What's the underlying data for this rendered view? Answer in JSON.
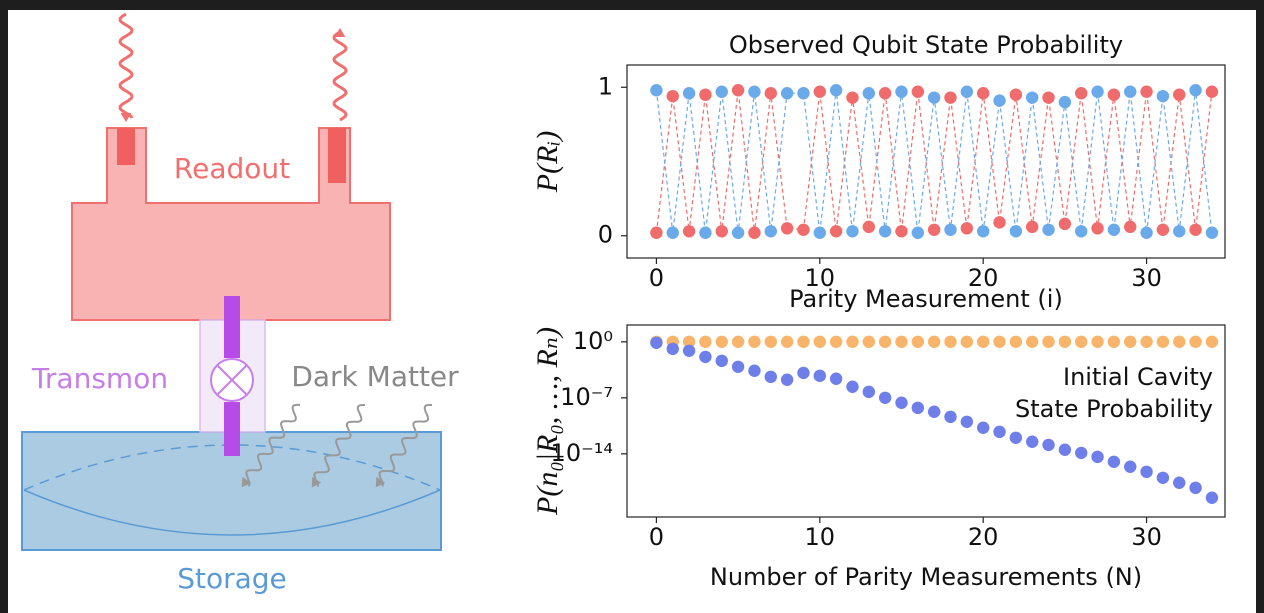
{
  "diagram": {
    "readout_label": "Readout",
    "transmon_label": "Transmon",
    "dark_matter_label": "Dark Matter",
    "storage_label": "Storage"
  },
  "chart_data": [
    {
      "type": "line",
      "title": "Observed Qubit State Probability",
      "y_label": "P(Rᵢ)",
      "x_label": "Parity Measurement (i)",
      "x": [
        0,
        1,
        2,
        3,
        4,
        5,
        6,
        7,
        8,
        9,
        10,
        11,
        12,
        13,
        14,
        15,
        16,
        17,
        18,
        19,
        20,
        21,
        22,
        23,
        24,
        25,
        26,
        27,
        28,
        29,
        30,
        31,
        32,
        33,
        34
      ],
      "series": [
        {
          "color": "#f06b6b",
          "values": [
            0.02,
            0.94,
            0.03,
            0.95,
            0.03,
            0.98,
            0.02,
            0.96,
            0.05,
            0.04,
            0.97,
            0.03,
            0.93,
            0.06,
            0.96,
            0.03,
            0.97,
            0.04,
            0.93,
            0.05,
            0.96,
            0.09,
            0.95,
            0.06,
            0.93,
            0.08,
            0.96,
            0.05,
            0.95,
            0.06,
            0.97,
            0.04,
            0.95,
            0.04,
            0.97
          ]
        },
        {
          "color": "#6aaaea",
          "values": [
            0.98,
            0.02,
            0.96,
            0.02,
            0.97,
            0.02,
            0.97,
            0.03,
            0.96,
            0.96,
            0.02,
            0.98,
            0.03,
            0.96,
            0.03,
            0.97,
            0.02,
            0.93,
            0.04,
            0.97,
            0.03,
            0.91,
            0.03,
            0.93,
            0.04,
            0.9,
            0.03,
            0.97,
            0.04,
            0.97,
            0.02,
            0.94,
            0.03,
            0.98,
            0.02
          ]
        }
      ],
      "xlim": [
        -1.8,
        34.8
      ],
      "ylim": [
        -0.15,
        1.15
      ],
      "xticks": [
        0,
        10,
        20,
        30
      ],
      "yticks": [
        0,
        1
      ],
      "dashed": true
    },
    {
      "type": "scatter",
      "y_label": "P(n₀|R₀, …, Rₙ)",
      "x_label": "Number of Parity Measurements (N)",
      "annotation": [
        "Initial Cavity",
        "State Probability"
      ],
      "x": [
        0,
        1,
        2,
        3,
        4,
        5,
        6,
        7,
        8,
        9,
        10,
        11,
        12,
        13,
        14,
        15,
        16,
        17,
        18,
        19,
        20,
        21,
        22,
        23,
        24,
        25,
        26,
        27,
        28,
        29,
        30,
        31,
        32,
        33,
        34
      ],
      "series": [
        {
          "color": "#f8b46a",
          "values": [
            1,
            1,
            1,
            1,
            1,
            1,
            1,
            1,
            1,
            1,
            1,
            1,
            1,
            1,
            1,
            1,
            1,
            1,
            1,
            1,
            1,
            1,
            1,
            1,
            1,
            1,
            1,
            1,
            1,
            1,
            1,
            1,
            1,
            1,
            1
          ]
        },
        {
          "color": "#6f7fea",
          "values": [
            0.75,
            0.13,
            0.075,
            0.013,
            0.0042,
            0.00075,
            0.00024,
            4.2e-05,
            1.8e-05,
            0.00013,
            5.6e-05,
            2.4e-05,
            2.4e-06,
            5.6e-07,
            1e-07,
            2.4e-08,
            5.6e-09,
            1.8e-09,
            4.2e-10,
            1e-10,
            1.8e-11,
            5.6e-12,
            1e-12,
            3.2e-13,
            1.3e-13,
            3.2e-14,
            1.3e-14,
            4.2e-15,
            1e-15,
            2.4e-16,
            5.6e-17,
            1e-17,
            2.4e-18,
            5.6e-19,
            3.2e-20
          ]
        }
      ],
      "xlim": [
        -1.8,
        34.8
      ],
      "ylim": [
        1.26e-22,
        126
      ],
      "log_y": true,
      "xticks": [
        0,
        10,
        20,
        30
      ],
      "yticks": [
        {
          "value": 1,
          "label": "10⁰"
        },
        {
          "value": 1e-07,
          "label": "10⁻⁷"
        },
        {
          "value": 1e-14,
          "label": "10⁻¹⁴"
        }
      ]
    }
  ]
}
